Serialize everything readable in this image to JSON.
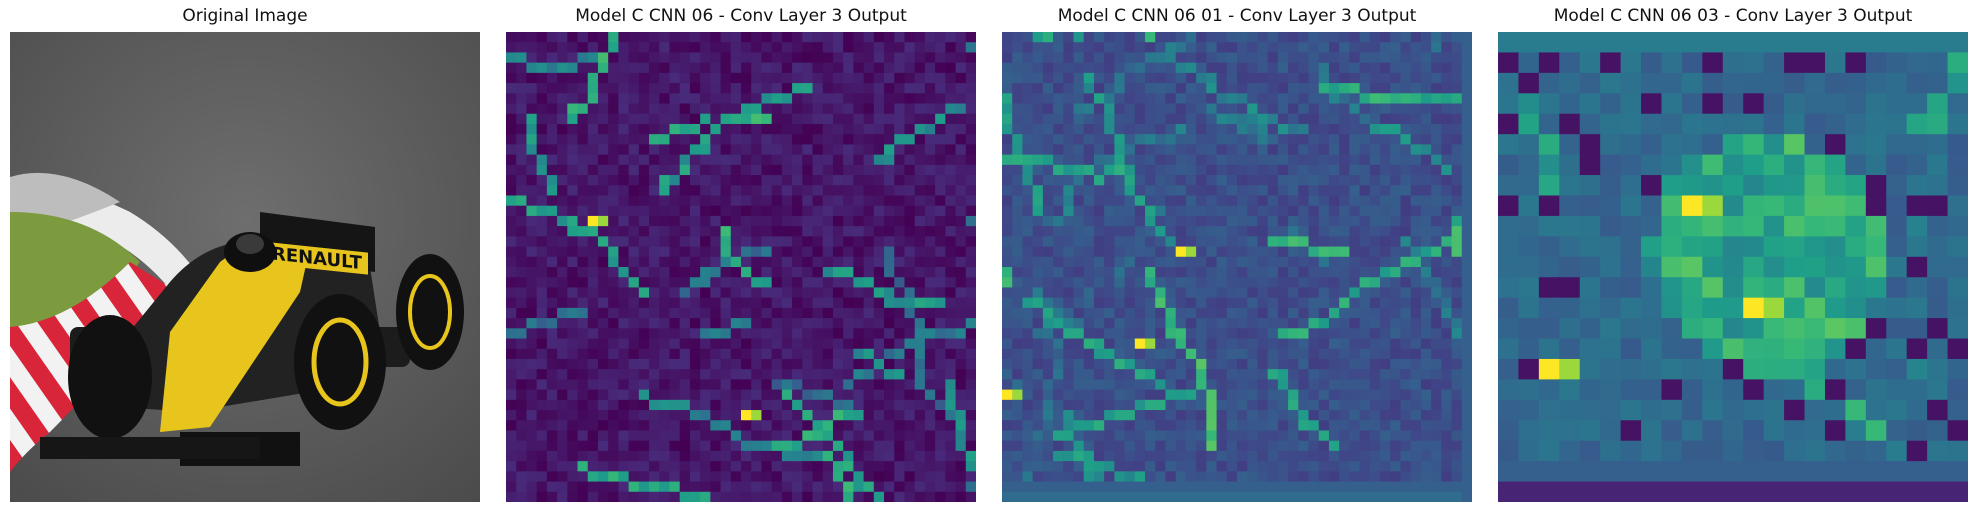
{
  "figure": {
    "colormap": "viridis",
    "panels": [
      {
        "title": "Original Image",
        "kind": "photo",
        "subject": "Formula 1 race car with yellow and black livery cornering past a red and white kerb",
        "livery_text": [
          "RENAULT",
          "RENAULT"
        ]
      },
      {
        "title": "Model C CNN 06 - Conv Layer 3 Output",
        "kind": "feature-map",
        "grid": 46,
        "seed": 11,
        "style": "sparse-edges"
      },
      {
        "title": "Model C CNN 06 01 - Conv Layer 3 Output",
        "kind": "feature-map",
        "grid": 46,
        "seed": 23,
        "style": "dense-edges"
      },
      {
        "title": "Model C CNN 06 03 - Conv Layer 3 Output",
        "kind": "feature-map",
        "grid": 23,
        "seed": 37,
        "style": "blocky"
      }
    ]
  },
  "chart_data": [
    {
      "type": "heatmap",
      "title": "Model C CNN 06 - Conv Layer 3 Output",
      "colormap": "viridis",
      "axes": "off"
    },
    {
      "type": "heatmap",
      "title": "Model C CNN 06 01 - Conv Layer 3 Output",
      "colormap": "viridis",
      "axes": "off"
    },
    {
      "type": "heatmap",
      "title": "Model C CNN 06 03 - Conv Layer 3 Output",
      "colormap": "viridis",
      "axes": "off"
    }
  ]
}
